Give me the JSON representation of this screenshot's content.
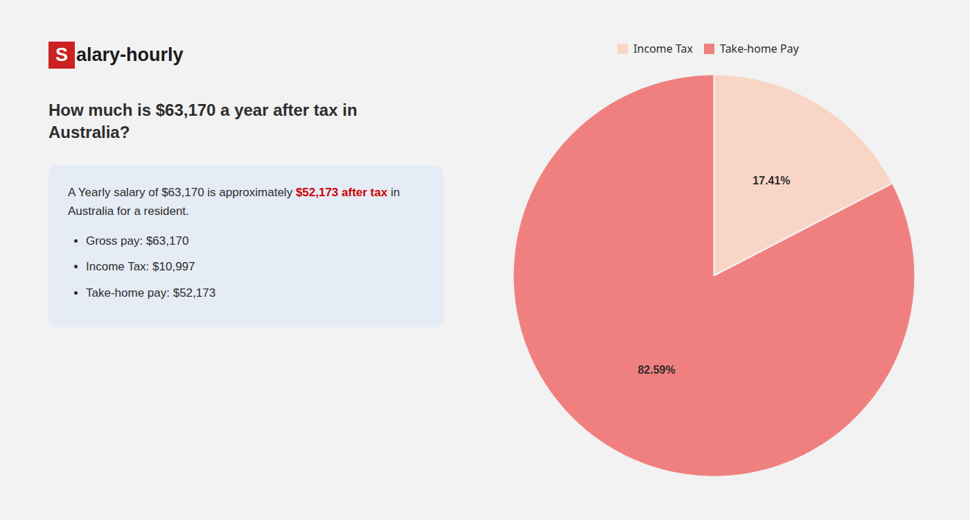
{
  "chart_data": {
    "type": "pie",
    "title": "How much is $63,170 a year after tax in Australia?",
    "categories": [
      "Income Tax",
      "Take-home Pay"
    ],
    "values": [
      17.41,
      82.59
    ],
    "value_labels": [
      "17.41%",
      "82.59%"
    ],
    "colors": [
      "#f9d5c5",
      "#f08080"
    ],
    "data_labels": true,
    "legend": "top",
    "annotations": [
      {
        "text": "S",
        "color": "#cc2222"
      },
      {
        "text": "alary-hourly"
      },
      {
        "text": "A Yearly salary of $63,170 is approximately"
      },
      {
        "text": "$52,173 after tax",
        "color": "#cc0000"
      },
      {
        "text": "in"
      },
      {
        "text": "Australia for a resident."
      },
      {
        "text": "Gross pay: $63,170"
      },
      {
        "text": "Income Tax: $10,997"
      },
      {
        "text": "Take-home pay: $52,173"
      }
    ]
  }
}
